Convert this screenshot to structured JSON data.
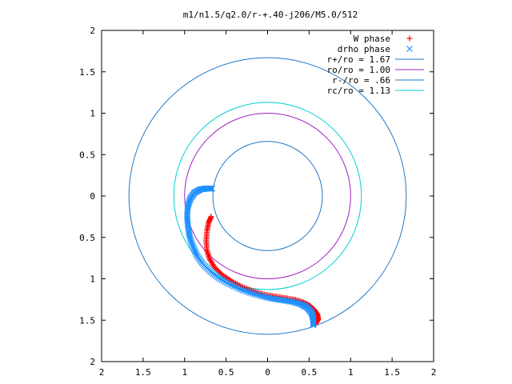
{
  "chart_data": {
    "type": "scatter",
    "title": "m1/n1.5/q2.0/r-+.40-j206/M5.0/512",
    "xlim": [
      -2,
      2
    ],
    "ylim": [
      -2,
      2
    ],
    "x_tick_labels": [
      "2",
      "1.5",
      "1",
      "0.5",
      "0",
      "0.5",
      "1",
      "1.5",
      "2"
    ],
    "y_tick_labels": [
      "2",
      "1.5",
      "1",
      "0.5",
      "0",
      "0.5",
      "1",
      "1.5",
      "2"
    ],
    "grid": false,
    "legend_position": "top-right",
    "circles": [
      {
        "name": "r+/ro = 1.67",
        "radius": 1.67,
        "color": "#1f78c8"
      },
      {
        "name": "ro/ro = 1.00",
        "radius": 1.0,
        "color": "#a020c0"
      },
      {
        "name": "r-/ro = .66",
        "radius": 0.66,
        "color": "#1f78c8"
      },
      {
        "name": "rc/ro = 1.13",
        "radius": 1.13,
        "color": "#00d0d0"
      }
    ],
    "series": [
      {
        "name": "W phase",
        "marker": "+",
        "color": "#ff0000",
        "x": [
          -0.68,
          -0.71,
          -0.73,
          -0.74,
          -0.73,
          -0.7,
          -0.64,
          -0.55,
          -0.43,
          -0.3,
          -0.17,
          -0.04,
          0.08,
          0.2,
          0.32,
          0.42,
          0.5,
          0.56,
          0.6,
          0.61,
          0.58
        ],
        "y": [
          -0.25,
          -0.32,
          -0.42,
          -0.54,
          -0.66,
          -0.76,
          -0.86,
          -0.95,
          -1.03,
          -1.1,
          -1.15,
          -1.19,
          -1.21,
          -1.23,
          -1.25,
          -1.28,
          -1.32,
          -1.37,
          -1.43,
          -1.49,
          -1.54
        ]
      },
      {
        "name": "drho phase",
        "marker": "x",
        "color": "#1e90ff",
        "x": [
          -0.67,
          -0.74,
          -0.81,
          -0.88,
          -0.93,
          -0.96,
          -0.97,
          -0.96,
          -0.94,
          -0.9,
          -0.85,
          -0.78,
          -0.69,
          -0.59,
          -0.47,
          -0.34,
          -0.21,
          -0.07,
          0.06,
          0.19,
          0.31,
          0.41,
          0.48,
          0.53,
          0.55,
          0.55
        ],
        "y": [
          0.09,
          0.09,
          0.08,
          0.04,
          -0.03,
          -0.12,
          -0.24,
          -0.36,
          -0.49,
          -0.61,
          -0.72,
          -0.82,
          -0.91,
          -0.99,
          -1.06,
          -1.12,
          -1.17,
          -1.21,
          -1.24,
          -1.26,
          -1.28,
          -1.31,
          -1.35,
          -1.41,
          -1.48,
          -1.56
        ]
      }
    ]
  }
}
